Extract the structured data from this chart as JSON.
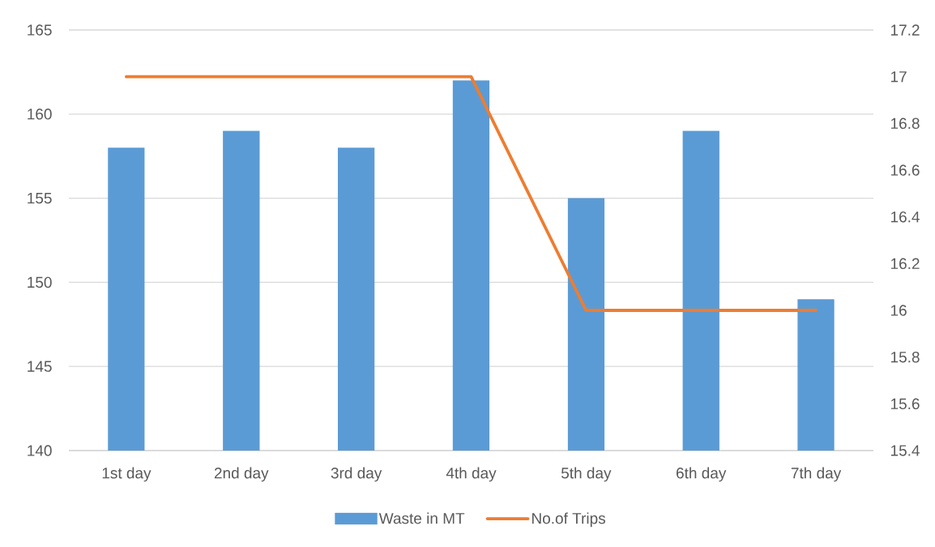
{
  "chart_data": {
    "type": "bar",
    "categories": [
      "1st day",
      "2nd day",
      "3rd day",
      "4th day",
      "5th day",
      "6th day",
      "7th day"
    ],
    "series": [
      {
        "name": "Waste in MT",
        "color": "#5b9bd5",
        "values": [
          158,
          159,
          158,
          162,
          155,
          159,
          149
        ]
      },
      {
        "name": "No.of Trips",
        "type": "line",
        "axis": "y2",
        "color": "#ed7d31",
        "values": [
          17,
          17,
          17,
          17,
          16,
          16,
          16
        ]
      }
    ],
    "ylim": [
      140,
      165
    ],
    "yticks": [
      140,
      145,
      150,
      155,
      160,
      165
    ],
    "y2lim": [
      15.4,
      17.2
    ],
    "y2ticks": [
      15.4,
      15.6,
      15.8,
      16,
      16.2,
      16.4,
      16.6,
      16.8,
      17,
      17.2
    ],
    "grid": "y",
    "legend": "bottom"
  }
}
